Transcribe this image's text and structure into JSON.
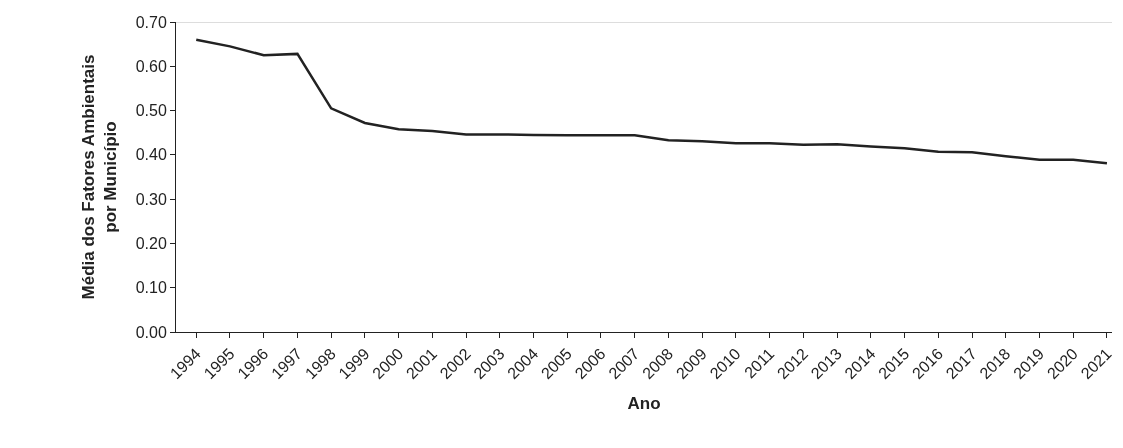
{
  "chart_data": {
    "type": "line",
    "xlabel": "Ano",
    "ylabel": "Média dos Fatores Ambientais\npor Município",
    "categories": [
      "1994",
      "1995",
      "1996",
      "1997",
      "1998",
      "1999",
      "2000",
      "2001",
      "2002",
      "2003",
      "2004",
      "2005",
      "2006",
      "2007",
      "2008",
      "2009",
      "2010",
      "2011",
      "2012",
      "2013",
      "2014",
      "2015",
      "2016",
      "2017",
      "2018",
      "2019",
      "2020",
      "2021"
    ],
    "series": [
      {
        "color": "#222222",
        "values": [
          0.66,
          0.645,
          0.625,
          0.628,
          0.505,
          0.472,
          0.458,
          0.454,
          0.446,
          0.446,
          0.445,
          0.444,
          0.444,
          0.444,
          0.433,
          0.431,
          0.426,
          0.426,
          0.423,
          0.424,
          0.419,
          0.415,
          0.407,
          0.406,
          0.397,
          0.389,
          0.389,
          0.381
        ]
      }
    ],
    "ylim": [
      0,
      0.7
    ],
    "yticks": [
      {
        "value": 0,
        "label": "0.00"
      },
      {
        "value": 0.1,
        "label": "0.10"
      },
      {
        "value": 0.2,
        "label": "0.20"
      },
      {
        "value": 0.3,
        "label": "0.30"
      },
      {
        "value": 0.4,
        "label": "0.40"
      },
      {
        "value": 0.5,
        "label": "0.50"
      },
      {
        "value": 0.6,
        "label": "0.60"
      },
      {
        "value": 0.7,
        "label": "0.70"
      }
    ],
    "legend": false
  }
}
